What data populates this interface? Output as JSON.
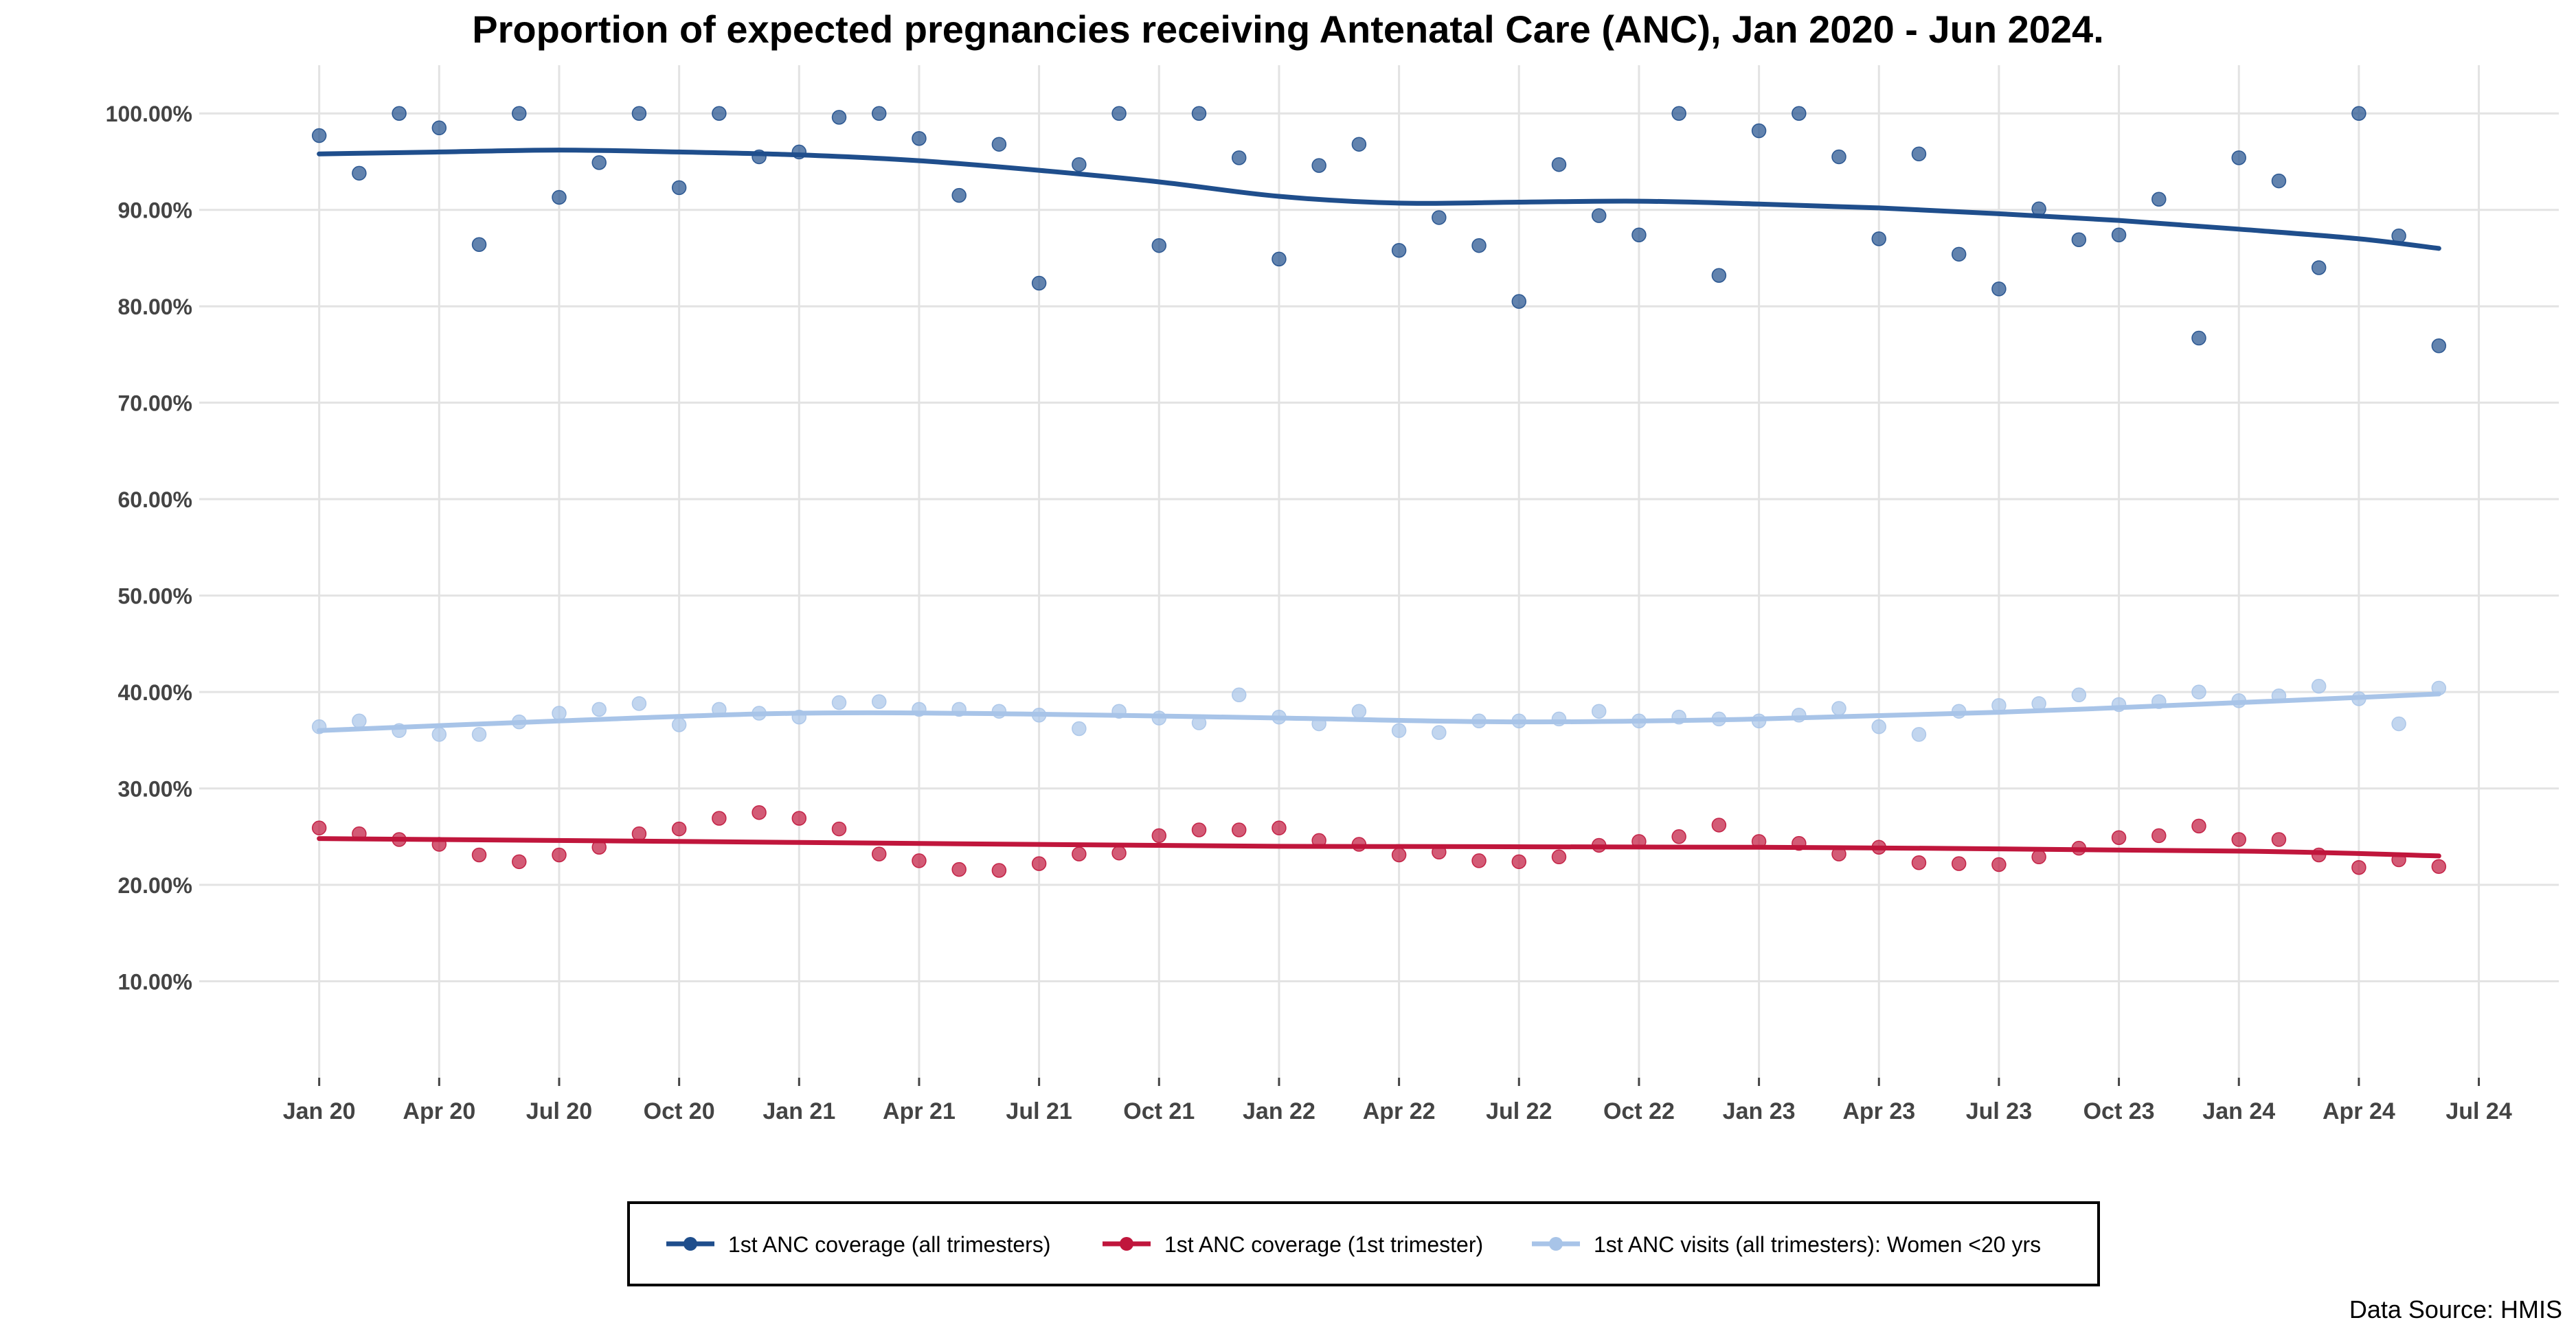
{
  "chart_data": {
    "type": "scatter",
    "title": "Proportion of expected pregnancies receiving Antenatal Care (ANC), Jan 2020 - Jun 2024.",
    "xlabel": "",
    "ylabel": "",
    "x_start": "2020-01",
    "x_range": [
      "2019-10",
      "2024-09"
    ],
    "x_ticks": [
      {
        "date": "2020-01",
        "label": "Jan 20"
      },
      {
        "date": "2020-04",
        "label": "Apr 20"
      },
      {
        "date": "2020-07",
        "label": "Jul 20"
      },
      {
        "date": "2020-10",
        "label": "Oct 20"
      },
      {
        "date": "2021-01",
        "label": "Jan 21"
      },
      {
        "date": "2021-04",
        "label": "Apr 21"
      },
      {
        "date": "2021-07",
        "label": "Jul 21"
      },
      {
        "date": "2021-10",
        "label": "Oct 21"
      },
      {
        "date": "2022-01",
        "label": "Jan 22"
      },
      {
        "date": "2022-04",
        "label": "Apr 22"
      },
      {
        "date": "2022-07",
        "label": "Jul 22"
      },
      {
        "date": "2022-10",
        "label": "Oct 22"
      },
      {
        "date": "2023-01",
        "label": "Jan 23"
      },
      {
        "date": "2023-04",
        "label": "Apr 23"
      },
      {
        "date": "2023-07",
        "label": "Jul 23"
      },
      {
        "date": "2023-10",
        "label": "Oct 23"
      },
      {
        "date": "2024-01",
        "label": "Jan 24"
      },
      {
        "date": "2024-04",
        "label": "Apr 24"
      },
      {
        "date": "2024-07",
        "label": "Jul 24"
      }
    ],
    "ylim": [
      0,
      105
    ],
    "y_ticks": [
      {
        "value": 10,
        "label": "10.00%"
      },
      {
        "value": 20,
        "label": "20.00%"
      },
      {
        "value": 30,
        "label": "30.00%"
      },
      {
        "value": 40,
        "label": "40.00%"
      },
      {
        "value": 50,
        "label": "50.00%"
      },
      {
        "value": 60,
        "label": "60.00%"
      },
      {
        "value": 70,
        "label": "70.00%"
      },
      {
        "value": 80,
        "label": "80.00%"
      },
      {
        "value": 90,
        "label": "90.00%"
      },
      {
        "value": 100,
        "label": "100.00%"
      }
    ],
    "grid": true,
    "legend_position": "bottom",
    "source_note": "Data Source: HMIS",
    "series": [
      {
        "name": "1st ANC coverage (all trimesters)",
        "color": "#1f4e8c",
        "values": [
          97.7,
          93.8,
          100,
          98.5,
          86.4,
          100,
          91.3,
          94.9,
          100,
          92.3,
          100,
          95.5,
          96.0,
          99.6,
          100,
          97.4,
          91.5,
          96.8,
          82.4,
          94.7,
          100,
          86.3,
          100,
          95.4,
          84.9,
          94.6,
          96.8,
          85.8,
          89.2,
          86.3,
          80.5,
          94.7,
          89.4,
          87.4,
          100,
          83.2,
          98.2,
          100,
          95.5,
          87.0,
          95.8,
          85.4,
          81.8,
          90.1,
          86.9,
          87.4,
          91.1,
          76.7,
          95.4,
          93.0,
          84.0,
          100,
          87.3,
          75.9
        ],
        "trend": [
          {
            "date": "2020-01",
            "value": 95.8
          },
          {
            "date": "2020-04",
            "value": 96.0
          },
          {
            "date": "2020-07",
            "value": 96.2
          },
          {
            "date": "2020-10",
            "value": 96.0
          },
          {
            "date": "2021-01",
            "value": 95.7
          },
          {
            "date": "2021-04",
            "value": 95.1
          },
          {
            "date": "2021-07",
            "value": 94.1
          },
          {
            "date": "2021-10",
            "value": 92.9
          },
          {
            "date": "2022-01",
            "value": 91.4
          },
          {
            "date": "2022-04",
            "value": 90.7
          },
          {
            "date": "2022-07",
            "value": 90.8
          },
          {
            "date": "2022-10",
            "value": 90.9
          },
          {
            "date": "2023-01",
            "value": 90.6
          },
          {
            "date": "2023-04",
            "value": 90.2
          },
          {
            "date": "2023-07",
            "value": 89.6
          },
          {
            "date": "2023-10",
            "value": 88.9
          },
          {
            "date": "2024-01",
            "value": 88.0
          },
          {
            "date": "2024-04",
            "value": 87.0
          },
          {
            "date": "2024-06",
            "value": 86.0
          }
        ]
      },
      {
        "name": "1st ANC coverage (1st trimester)",
        "color": "#c0163c",
        "values": [
          25.9,
          25.3,
          24.7,
          24.2,
          23.1,
          22.4,
          23.1,
          23.9,
          25.3,
          25.8,
          26.9,
          27.5,
          26.9,
          25.8,
          23.2,
          22.5,
          21.6,
          21.5,
          22.2,
          23.2,
          23.3,
          25.1,
          25.7,
          25.7,
          25.9,
          24.6,
          24.2,
          23.1,
          23.4,
          22.5,
          22.4,
          22.9,
          24.1,
          24.5,
          25.0,
          26.2,
          24.5,
          24.3,
          23.2,
          23.9,
          22.3,
          22.2,
          22.1,
          22.9,
          23.8,
          24.9,
          25.1,
          26.1,
          24.7,
          24.7,
          23.1,
          21.8,
          22.6,
          21.9
        ],
        "trend": [
          {
            "date": "2020-01",
            "value": 24.8
          },
          {
            "date": "2021-01",
            "value": 24.4
          },
          {
            "date": "2022-01",
            "value": 24.0
          },
          {
            "date": "2023-01",
            "value": 23.9
          },
          {
            "date": "2024-01",
            "value": 23.5
          },
          {
            "date": "2024-06",
            "value": 23.0
          }
        ]
      },
      {
        "name": "1st ANC visits (all trimesters): Women <20 yrs",
        "color": "#a8c4e8",
        "values": [
          36.4,
          37.0,
          36.0,
          35.6,
          35.6,
          36.9,
          37.8,
          38.2,
          38.8,
          36.6,
          38.2,
          37.8,
          37.4,
          38.9,
          39.0,
          38.2,
          38.2,
          38.0,
          37.6,
          36.2,
          38.0,
          37.3,
          36.8,
          39.7,
          37.4,
          36.7,
          38.0,
          36.0,
          35.8,
          37.0,
          37.0,
          37.2,
          38.0,
          37.0,
          37.4,
          37.2,
          37.0,
          37.6,
          38.3,
          36.4,
          35.6,
          38.0,
          38.6,
          38.8,
          39.7,
          38.7,
          39.0,
          40.0,
          39.1,
          39.6,
          40.6,
          39.3,
          36.7,
          40.4
        ],
        "trend": [
          {
            "date": "2020-01",
            "value": 36.0
          },
          {
            "date": "2020-07",
            "value": 37.0
          },
          {
            "date": "2021-01",
            "value": 37.8
          },
          {
            "date": "2021-07",
            "value": 37.7
          },
          {
            "date": "2022-01",
            "value": 37.3
          },
          {
            "date": "2022-07",
            "value": 36.9
          },
          {
            "date": "2023-01",
            "value": 37.2
          },
          {
            "date": "2023-07",
            "value": 37.9
          },
          {
            "date": "2024-01",
            "value": 38.9
          },
          {
            "date": "2024-06",
            "value": 39.8
          }
        ]
      }
    ]
  }
}
